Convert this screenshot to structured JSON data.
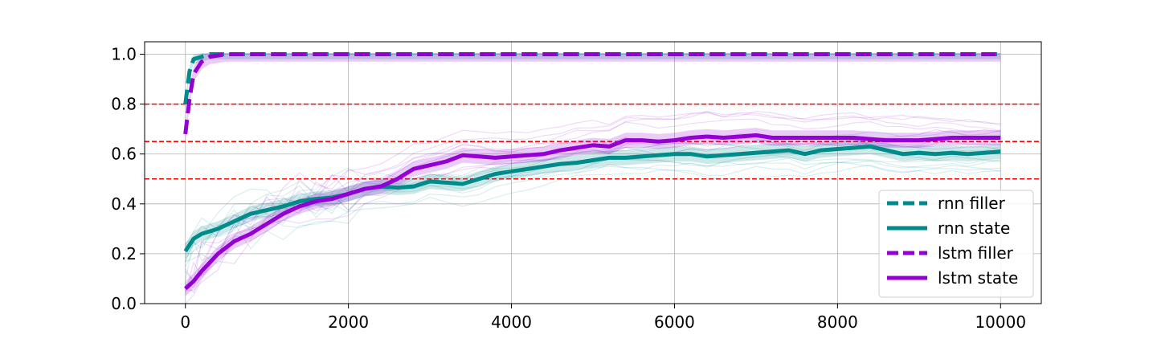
{
  "chart_data": {
    "type": "line",
    "title": "",
    "xlabel": "",
    "ylabel": "",
    "xlim": [
      -500,
      10500
    ],
    "ylim": [
      0.0,
      1.05
    ],
    "xticks": [
      0,
      2000,
      4000,
      6000,
      8000,
      10000
    ],
    "yticks": [
      0.0,
      0.2,
      0.4,
      0.6,
      0.8,
      1.0
    ],
    "xtick_labels": [
      "0",
      "2000",
      "4000",
      "6000",
      "8000",
      "10000"
    ],
    "ytick_labels": [
      "0.0",
      "0.2",
      "0.4",
      "0.6",
      "0.8",
      "1.0"
    ],
    "grid": true,
    "legend_position": "lower-right",
    "reference_lines": [
      {
        "y": 0.8,
        "color": "#ff0000",
        "style": "dashed"
      },
      {
        "y": 0.65,
        "color": "#ff0000",
        "style": "dashed"
      },
      {
        "y": 0.5,
        "color": "#ff0000",
        "style": "dashed"
      }
    ],
    "series": [
      {
        "name": "rnn filler",
        "color": "#008b8b",
        "style": "dashed",
        "x": [
          0,
          50,
          100,
          200,
          300,
          500,
          1000,
          2000,
          4000,
          6000,
          8000,
          10000
        ],
        "y": [
          0.8,
          0.93,
          0.98,
          0.99,
          1.0,
          1.0,
          1.0,
          1.0,
          1.0,
          1.0,
          1.0,
          1.0
        ],
        "band": 0.02
      },
      {
        "name": "rnn state",
        "color": "#008b8b",
        "style": "solid",
        "x": [
          0,
          100,
          200,
          400,
          600,
          800,
          1000,
          1200,
          1400,
          1600,
          1800,
          2000,
          2200,
          2400,
          2600,
          2800,
          3000,
          3200,
          3400,
          3600,
          3800,
          4000,
          4200,
          4400,
          4600,
          4800,
          5000,
          5200,
          5400,
          5600,
          5800,
          6000,
          6200,
          6400,
          6600,
          6800,
          7000,
          7200,
          7400,
          7600,
          7800,
          8000,
          8200,
          8400,
          8600,
          8800,
          9000,
          9200,
          9400,
          9600,
          9800,
          10000
        ],
        "y": [
          0.21,
          0.26,
          0.28,
          0.3,
          0.33,
          0.36,
          0.375,
          0.39,
          0.41,
          0.42,
          0.425,
          0.44,
          0.46,
          0.47,
          0.465,
          0.47,
          0.49,
          0.485,
          0.48,
          0.5,
          0.52,
          0.53,
          0.54,
          0.55,
          0.56,
          0.565,
          0.575,
          0.585,
          0.585,
          0.59,
          0.595,
          0.6,
          0.6,
          0.59,
          0.595,
          0.6,
          0.605,
          0.61,
          0.615,
          0.6,
          0.615,
          0.62,
          0.625,
          0.63,
          0.615,
          0.6,
          0.605,
          0.6,
          0.605,
          0.6,
          0.605,
          0.61
        ],
        "band": 0.03
      },
      {
        "name": "lstm filler",
        "color": "#9400d3",
        "style": "dashed",
        "x": [
          0,
          50,
          100,
          200,
          300,
          500,
          1000,
          2000,
          4000,
          6000,
          8000,
          10000
        ],
        "y": [
          0.68,
          0.82,
          0.92,
          0.97,
          0.99,
          1.0,
          1.0,
          1.0,
          1.0,
          1.0,
          1.0,
          1.0
        ],
        "band": 0.03
      },
      {
        "name": "lstm state",
        "color": "#9400d3",
        "style": "solid",
        "x": [
          0,
          100,
          200,
          400,
          600,
          800,
          1000,
          1200,
          1400,
          1600,
          1800,
          2000,
          2200,
          2400,
          2600,
          2800,
          3000,
          3200,
          3400,
          3600,
          3800,
          4000,
          4200,
          4400,
          4600,
          4800,
          5000,
          5200,
          5400,
          5600,
          5800,
          6000,
          6200,
          6400,
          6600,
          6800,
          7000,
          7200,
          7400,
          7600,
          7800,
          8000,
          8200,
          8400,
          8600,
          8800,
          9000,
          9200,
          9400,
          9600,
          9800,
          10000
        ],
        "y": [
          0.06,
          0.09,
          0.13,
          0.2,
          0.25,
          0.28,
          0.32,
          0.36,
          0.39,
          0.41,
          0.42,
          0.44,
          0.46,
          0.47,
          0.5,
          0.54,
          0.555,
          0.57,
          0.595,
          0.59,
          0.585,
          0.59,
          0.595,
          0.6,
          0.615,
          0.625,
          0.635,
          0.63,
          0.655,
          0.655,
          0.65,
          0.655,
          0.665,
          0.67,
          0.665,
          0.67,
          0.675,
          0.665,
          0.665,
          0.665,
          0.665,
          0.665,
          0.665,
          0.66,
          0.655,
          0.655,
          0.655,
          0.66,
          0.665,
          0.665,
          0.665,
          0.665
        ],
        "band": 0.03
      }
    ]
  }
}
